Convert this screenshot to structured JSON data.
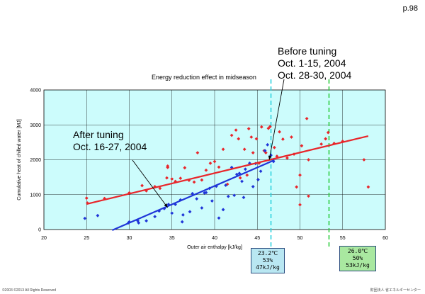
{
  "page_number": "p.98",
  "chart_data": {
    "type": "scatter",
    "title": "Energy reduction effect in midseason",
    "xlabel": "Outer air enthalpy [kJ/kg]",
    "ylabel": "Cumulative heat of chilled water [MJ]",
    "xlim": [
      20,
      60
    ],
    "ylim": [
      0,
      4000
    ],
    "xticks": [
      "20",
      "25",
      "30",
      "35",
      "40",
      "45",
      "50",
      "55",
      "60"
    ],
    "yticks": [
      "0",
      "1000",
      "2000",
      "3000",
      "4000"
    ],
    "grid": true,
    "plot_background": "#ccfcfc",
    "series": [
      {
        "color": "#e8262b",
        "points": [
          [
            25.0,
            900
          ],
          [
            25.1,
            760
          ],
          [
            27.1,
            890
          ],
          [
            30.0,
            1050
          ],
          [
            31.5,
            1260
          ],
          [
            32.0,
            1110
          ],
          [
            33.0,
            1230
          ],
          [
            33.6,
            1180
          ],
          [
            34.4,
            1480
          ],
          [
            34.5,
            1820
          ],
          [
            34.5,
            1780
          ],
          [
            35.0,
            1450
          ],
          [
            35.4,
            1380
          ],
          [
            36.0,
            1470
          ],
          [
            36.5,
            1770
          ],
          [
            37.0,
            1410
          ],
          [
            37.6,
            1360
          ],
          [
            38.0,
            2200
          ],
          [
            38.5,
            1420
          ],
          [
            39.0,
            1700
          ],
          [
            39.5,
            1900
          ],
          [
            40.0,
            1950
          ],
          [
            40.5,
            1790
          ],
          [
            41.0,
            2300
          ],
          [
            41.5,
            1300
          ],
          [
            42.0,
            2700
          ],
          [
            42.5,
            2850
          ],
          [
            42.8,
            2600
          ],
          [
            43.0,
            1480
          ],
          [
            43.5,
            2300
          ],
          [
            43.8,
            1560
          ],
          [
            44.0,
            2890
          ],
          [
            44.3,
            2650
          ],
          [
            44.5,
            2200
          ],
          [
            44.9,
            2600
          ],
          [
            45.2,
            1900
          ],
          [
            45.5,
            2940
          ],
          [
            45.8,
            2260
          ],
          [
            46.0,
            2200
          ],
          [
            46.3,
            2900
          ],
          [
            46.5,
            2950
          ],
          [
            47.0,
            2350
          ],
          [
            47.3,
            2100
          ],
          [
            47.6,
            2800
          ],
          [
            48.0,
            2590
          ],
          [
            48.5,
            2050
          ],
          [
            49.0,
            2650
          ],
          [
            49.3,
            2160
          ],
          [
            49.6,
            1220
          ],
          [
            50.0,
            1560
          ],
          [
            50.0,
            710
          ],
          [
            50.2,
            2400
          ],
          [
            50.8,
            3180
          ],
          [
            51.0,
            960
          ],
          [
            51.0,
            2000
          ],
          [
            52.5,
            2450
          ],
          [
            53.0,
            2600
          ],
          [
            53.3,
            2780
          ],
          [
            54.0,
            2470
          ],
          [
            55.0,
            2530
          ],
          [
            57.5,
            2000
          ],
          [
            58.0,
            1220
          ]
        ]
      },
      {
        "color": "#1f35d8",
        "points": [
          [
            24.8,
            320
          ],
          [
            26.3,
            400
          ],
          [
            29.9,
            190
          ],
          [
            30.0,
            220
          ],
          [
            31.0,
            250
          ],
          [
            31.1,
            190
          ],
          [
            32.0,
            250
          ],
          [
            33.0,
            370
          ],
          [
            33.5,
            530
          ],
          [
            34.1,
            600
          ],
          [
            34.6,
            720
          ],
          [
            35.0,
            470
          ],
          [
            35.4,
            720
          ],
          [
            36.0,
            850
          ],
          [
            36.2,
            220
          ],
          [
            36.3,
            420
          ],
          [
            37.1,
            510
          ],
          [
            37.4,
            1030
          ],
          [
            37.9,
            880
          ],
          [
            38.5,
            620
          ],
          [
            38.8,
            1050
          ],
          [
            39.0,
            1060
          ],
          [
            39.4,
            1180
          ],
          [
            39.7,
            820
          ],
          [
            40.2,
            1240
          ],
          [
            40.5,
            330
          ],
          [
            41.0,
            570
          ],
          [
            41.3,
            1270
          ],
          [
            41.6,
            950
          ],
          [
            42.0,
            1780
          ],
          [
            42.3,
            980
          ],
          [
            42.6,
            1580
          ],
          [
            42.9,
            1610
          ],
          [
            43.2,
            1380
          ],
          [
            43.4,
            920
          ],
          [
            43.6,
            1730
          ],
          [
            44.1,
            1900
          ],
          [
            44.5,
            1230
          ],
          [
            44.8,
            1890
          ],
          [
            45.1,
            1430
          ],
          [
            45.4,
            1670
          ],
          [
            45.9,
            2260
          ],
          [
            46.2,
            2430
          ],
          [
            46.6,
            2130
          ],
          [
            46.9,
            1950
          ]
        ]
      }
    ],
    "trendlines": [
      {
        "color": "#e8262b",
        "from": [
          25,
          730
        ],
        "to": [
          58,
          2680
        ]
      },
      {
        "color": "#1f35d8",
        "from": [
          28,
          -20
        ],
        "to": [
          47,
          1990
        ]
      }
    ],
    "reference_lines": [
      {
        "x": 46.6,
        "color": "#2fd3e0"
      },
      {
        "x": 53.4,
        "color": "#2ecc40"
      }
    ],
    "annotations": [
      {
        "text": "Before tuning\nOct. 1-15, 2004\nOct. 28-30, 2004",
        "arrow_to": [
          46.4,
          2000
        ]
      },
      {
        "text": "After tuning\nOct. 16-27, 2004",
        "arrow_to": [
          34.5,
          630
        ]
      }
    ],
    "info_boxes": [
      {
        "lines": [
          "23.2℃",
          "53%",
          "47kJ/kg"
        ],
        "color": "#b9e7f2"
      },
      {
        "lines": [
          "26.0℃",
          "50%",
          "53kJ/kg"
        ],
        "color": "#a9e8a0"
      }
    ]
  },
  "footer": {
    "copyright": "©2003  ©2013 All Rights Reserved",
    "org": "財団法人 省エネルギーセンター"
  }
}
